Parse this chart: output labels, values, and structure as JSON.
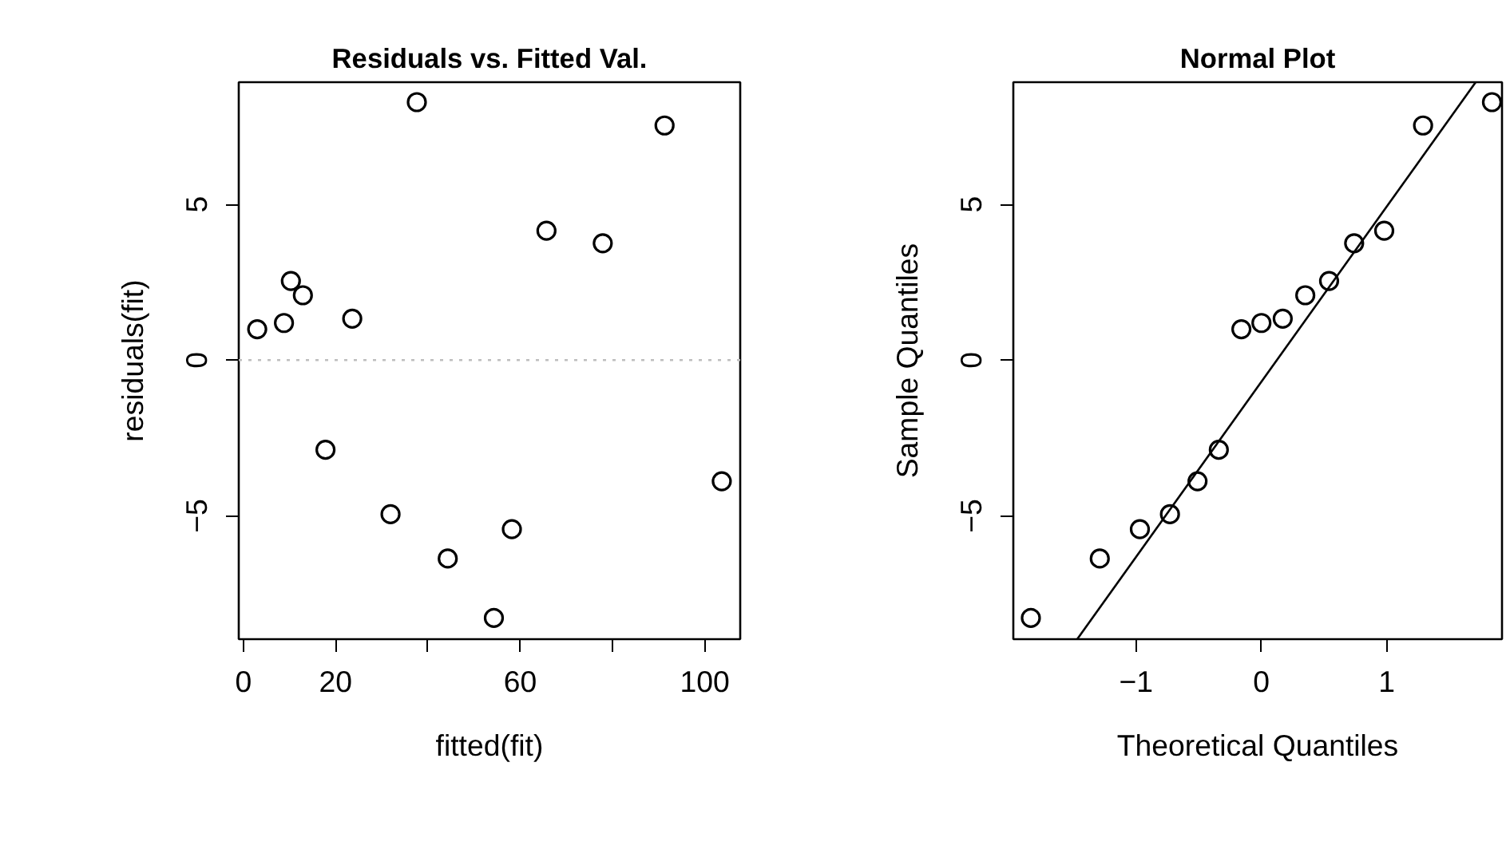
{
  "chart_data": [
    {
      "type": "scatter",
      "title": "Residuals vs. Fitted Val.",
      "xlabel": "fitted(fit)",
      "ylabel": "residuals(fit)",
      "marker": "circle",
      "grid": false,
      "x": [
        3.0,
        8.8,
        10.3,
        12.9,
        23.6,
        17.8,
        31.9,
        37.6,
        44.3,
        54.3,
        58.2,
        65.7,
        77.9,
        91.3,
        103.7
      ],
      "series": [
        {
          "color": "#000000",
          "values": [
            0.99,
            1.19,
            2.54,
            2.08,
            1.33,
            -2.88,
            -4.95,
            8.28,
            -6.37,
            -8.28,
            -5.43,
            4.15,
            3.75,
            7.53,
            -3.89
          ]
        }
      ],
      "xlim": [
        -1.0,
        107.7
      ],
      "ylim": [
        -8.96,
        8.92
      ],
      "xticks": [
        0,
        20,
        {
          "value": 40,
          "label": null
        },
        60,
        {
          "value": 80,
          "label": null
        },
        100
      ],
      "yticks": [
        {
          "value": -5,
          "label": "−5"
        },
        0,
        5
      ],
      "ref_lines": [
        {
          "axis": "y",
          "value": 0,
          "color": "#bebebe",
          "line_style": "dotted"
        }
      ]
    },
    {
      "type": "scatter",
      "title": "Normal Plot",
      "xlabel": "Theoretical Quantiles",
      "ylabel": "Sample Quantiles",
      "grid": false,
      "series": [
        {
          "type": "scatter",
          "marker": "circle",
          "color": "#000000",
          "x": [
            -1.84,
            -1.29,
            -0.97,
            -0.73,
            -0.51,
            -0.34,
            -0.16,
            0,
            0.17,
            0.35,
            0.54,
            0.74,
            0.98,
            1.29,
            1.84
          ],
          "values": [
            -8.28,
            -6.37,
            -5.43,
            -4.95,
            -3.89,
            -2.88,
            0.99,
            1.19,
            1.33,
            2.08,
            2.54,
            3.75,
            4.15,
            7.53,
            8.28
          ]
        },
        {
          "type": "line",
          "marker": "none",
          "color": "#000000",
          "x": [
            -1.47,
            1.71
          ],
          "values": [
            -8.96,
            8.92
          ]
        }
      ],
      "xlim": [
        -1.98,
        1.92
      ],
      "ylim": [
        -8.96,
        8.92
      ],
      "xticks": [
        {
          "value": -1,
          "label": "−1"
        },
        0,
        1
      ],
      "yticks": [
        {
          "value": -5,
          "label": "−5"
        },
        0,
        5
      ]
    }
  ]
}
